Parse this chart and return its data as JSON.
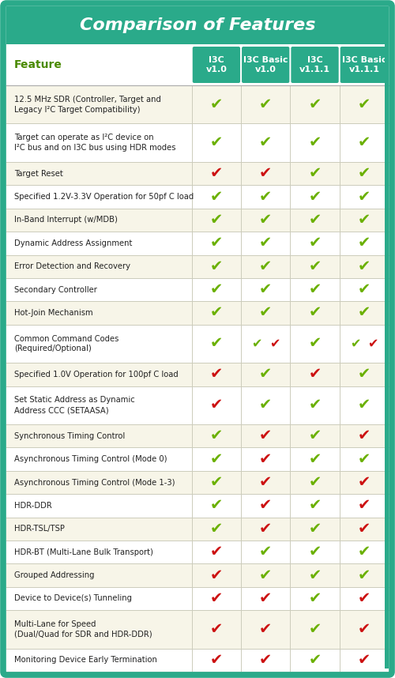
{
  "title": "Comparison of Features",
  "title_color": "#ffffff",
  "teal": "#2aaa8a",
  "header_text_color": "#ffffff",
  "col_headers": [
    "I3C\nv1.0",
    "I3C Basic\nv1.0",
    "I3C\nv1.1.1",
    "I3C Basic\nv1.1.1"
  ],
  "feature_col_header": "Feature",
  "feature_col_color": "#4a8a00",
  "row_bg_even": "#f7f5e8",
  "row_bg_odd": "#ffffff",
  "green_check": "#6ab000",
  "red_check": "#cc1111",
  "rows": [
    {
      "feature": "12.5 MHz SDR (Controller, Target and\nLegacy I²C Target Compatibility)",
      "checks": [
        "G",
        "G",
        "G",
        "G"
      ],
      "tall": true
    },
    {
      "feature": "Target can operate as I²C device on\nI²C bus and on I3C bus using HDR modes",
      "checks": [
        "G",
        "G",
        "G",
        "G"
      ],
      "tall": true
    },
    {
      "feature": "Target Reset",
      "checks": [
        "R",
        "R",
        "G",
        "G"
      ],
      "tall": false
    },
    {
      "feature": "Specified 1.2V-3.3V Operation for 50pf C load",
      "checks": [
        "G",
        "G",
        "G",
        "G"
      ],
      "tall": false
    },
    {
      "feature": "In-Band Interrupt (w/MDB)",
      "checks": [
        "G",
        "G",
        "G",
        "G"
      ],
      "tall": false
    },
    {
      "feature": "Dynamic Address Assignment",
      "checks": [
        "G",
        "G",
        "G",
        "G"
      ],
      "tall": false
    },
    {
      "feature": "Error Detection and Recovery",
      "checks": [
        "G",
        "G",
        "G",
        "G"
      ],
      "tall": false
    },
    {
      "feature": "Secondary Controller",
      "checks": [
        "G",
        "G",
        "G",
        "G"
      ],
      "tall": false
    },
    {
      "feature": "Hot-Join Mechanism",
      "checks": [
        "G",
        "G",
        "G",
        "G"
      ],
      "tall": false
    },
    {
      "feature": "Common Command Codes\n(Required/Optional)",
      "checks": [
        "G",
        "GR",
        "G",
        "GR"
      ],
      "tall": true
    },
    {
      "feature": "Specified 1.0V Operation for 100pf C load",
      "checks": [
        "R",
        "G",
        "R",
        "G"
      ],
      "tall": false
    },
    {
      "feature": "Set Static Address as Dynamic\nAddress CCC (SETAASA)",
      "checks": [
        "R",
        "G",
        "G",
        "G"
      ],
      "tall": true
    },
    {
      "feature": "Synchronous Timing Control",
      "checks": [
        "G",
        "R",
        "G",
        "R"
      ],
      "tall": false
    },
    {
      "feature": "Asynchronous Timing Control (Mode 0)",
      "checks": [
        "G",
        "R",
        "G",
        "G"
      ],
      "tall": false
    },
    {
      "feature": "Asynchronous Timing Control (Mode 1-3)",
      "checks": [
        "G",
        "R",
        "G",
        "R"
      ],
      "tall": false
    },
    {
      "feature": "HDR-DDR",
      "checks": [
        "G",
        "R",
        "G",
        "R"
      ],
      "tall": false
    },
    {
      "feature": "HDR-TSL/TSP",
      "checks": [
        "G",
        "R",
        "G",
        "R"
      ],
      "tall": false
    },
    {
      "feature": "HDR-BT (Multi-Lane Bulk Transport)",
      "checks": [
        "R",
        "G",
        "G",
        "G"
      ],
      "tall": false
    },
    {
      "feature": "Grouped Addressing",
      "checks": [
        "R",
        "G",
        "G",
        "G"
      ],
      "tall": false
    },
    {
      "feature": "Device to Device(s) Tunneling",
      "checks": [
        "R",
        "R",
        "G",
        "R"
      ],
      "tall": false
    },
    {
      "feature": "Multi-Lane for Speed\n(Dual/Quad for SDR and HDR-DDR)",
      "checks": [
        "R",
        "R",
        "G",
        "R"
      ],
      "tall": true
    },
    {
      "feature": "Monitoring Device Early Termination",
      "checks": [
        "R",
        "R",
        "G",
        "R"
      ],
      "tall": false
    }
  ]
}
